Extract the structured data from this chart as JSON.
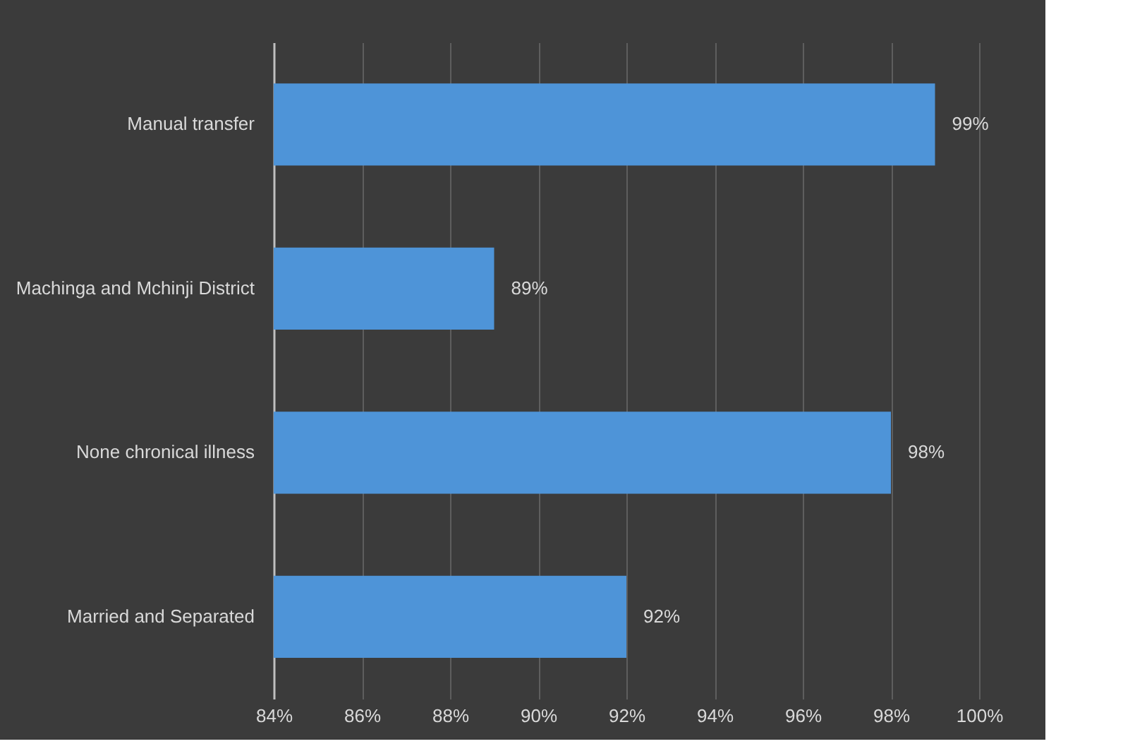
{
  "chart_data": {
    "type": "bar",
    "orientation": "horizontal",
    "categories": [
      "Manual transfer",
      "Machinga and Mchinji District",
      "None chronical illness",
      "Married and Separated"
    ],
    "values": [
      99,
      89,
      98,
      92
    ],
    "value_labels": [
      "99%",
      "89%",
      "98%",
      "92%"
    ],
    "color": "#4e94d8",
    "xlim": [
      84,
      100
    ],
    "xticks": [
      {
        "value": 84,
        "label": "84%"
      },
      {
        "value": 86,
        "label": "86%"
      },
      {
        "value": 88,
        "label": "88%"
      },
      {
        "value": 90,
        "label": "90%"
      },
      {
        "value": 92,
        "label": "92%"
      },
      {
        "value": 94,
        "label": "94%"
      },
      {
        "value": 96,
        "label": "96%"
      },
      {
        "value": 98,
        "label": "98%"
      },
      {
        "value": 100,
        "label": "100%"
      }
    ],
    "grid": "x"
  }
}
